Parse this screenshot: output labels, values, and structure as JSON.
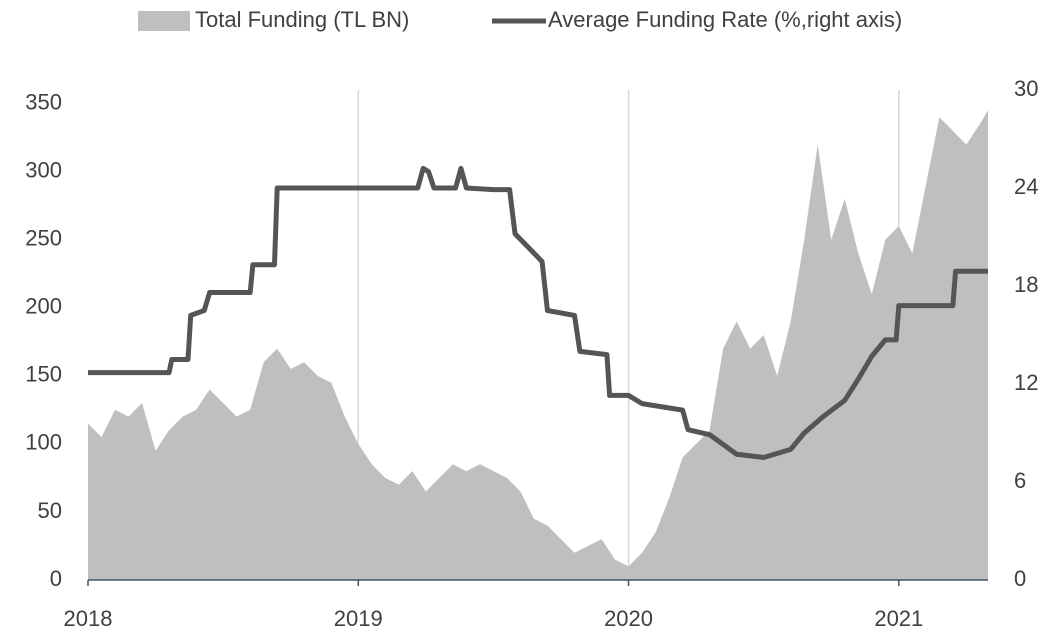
{
  "chart_data": {
    "type": "area",
    "xlim": [
      2018,
      2021.33
    ],
    "xticks": [
      2018,
      2019,
      2020,
      2021
    ],
    "ylim": [
      0,
      360
    ],
    "yticks": [
      0,
      50,
      100,
      150,
      200,
      250,
      300,
      350
    ],
    "y2lim": [
      0,
      30
    ],
    "y2ticks": [
      0,
      6,
      12,
      18,
      24,
      30
    ],
    "grid": true,
    "legend": "top",
    "series": [
      {
        "name": "Total Funding (TL BN)",
        "type": "area",
        "color": "#bfbfbf",
        "x": [
          2018.0,
          2018.05,
          2018.1,
          2018.15,
          2018.2,
          2018.25,
          2018.3,
          2018.35,
          2018.4,
          2018.45,
          2018.5,
          2018.55,
          2018.6,
          2018.65,
          2018.7,
          2018.75,
          2018.8,
          2018.85,
          2018.9,
          2018.95,
          2019.0,
          2019.05,
          2019.1,
          2019.15,
          2019.2,
          2019.25,
          2019.3,
          2019.35,
          2019.4,
          2019.45,
          2019.5,
          2019.55,
          2019.6,
          2019.65,
          2019.7,
          2019.75,
          2019.8,
          2019.85,
          2019.9,
          2019.95,
          2020.0,
          2020.05,
          2020.1,
          2020.15,
          2020.2,
          2020.25,
          2020.3,
          2020.35,
          2020.4,
          2020.45,
          2020.5,
          2020.55,
          2020.6,
          2020.65,
          2020.7,
          2020.75,
          2020.8,
          2020.85,
          2020.9,
          2020.95,
          2021.0,
          2021.05,
          2021.1,
          2021.15,
          2021.2,
          2021.25,
          2021.3,
          2021.33
        ],
        "values": [
          115,
          105,
          125,
          120,
          130,
          95,
          110,
          120,
          125,
          140,
          130,
          120,
          125,
          160,
          170,
          155,
          160,
          150,
          145,
          120,
          100,
          85,
          75,
          70,
          80,
          65,
          75,
          85,
          80,
          85,
          80,
          75,
          65,
          45,
          40,
          30,
          20,
          25,
          30,
          15,
          10,
          20,
          35,
          60,
          90,
          100,
          110,
          170,
          190,
          170,
          180,
          150,
          190,
          250,
          320,
          250,
          280,
          240,
          210,
          250,
          260,
          240,
          290,
          340,
          330,
          320,
          335,
          345
        ]
      },
      {
        "name": "Average Funding Rate (%,right axis)",
        "type": "line",
        "axis": "y2",
        "color": "#555555",
        "x": [
          2018.0,
          2018.3,
          2018.31,
          2018.37,
          2018.38,
          2018.43,
          2018.45,
          2018.6,
          2018.61,
          2018.69,
          2018.7,
          2019.22,
          2019.24,
          2019.26,
          2019.28,
          2019.36,
          2019.38,
          2019.4,
          2019.5,
          2019.56,
          2019.58,
          2019.68,
          2019.7,
          2019.8,
          2019.82,
          2019.92,
          2019.93,
          2020.0,
          2020.05,
          2020.2,
          2020.22,
          2020.3,
          2020.4,
          2020.5,
          2020.6,
          2020.65,
          2020.72,
          2020.8,
          2020.85,
          2020.9,
          2020.95,
          2020.99,
          2021.0,
          2021.2,
          2021.21,
          2021.33
        ],
        "values": [
          12.7,
          12.7,
          13.5,
          13.5,
          16.2,
          16.5,
          17.6,
          17.6,
          19.3,
          19.3,
          24.0,
          24.0,
          25.2,
          25.0,
          24.0,
          24.0,
          25.2,
          24.0,
          23.9,
          23.9,
          21.2,
          19.5,
          16.5,
          16.2,
          14.0,
          13.8,
          11.3,
          11.3,
          10.8,
          10.4,
          9.2,
          8.9,
          7.7,
          7.5,
          8.0,
          9.0,
          10.0,
          11.0,
          12.3,
          13.7,
          14.7,
          14.7,
          16.8,
          16.8,
          18.9,
          18.9
        ]
      }
    ]
  }
}
